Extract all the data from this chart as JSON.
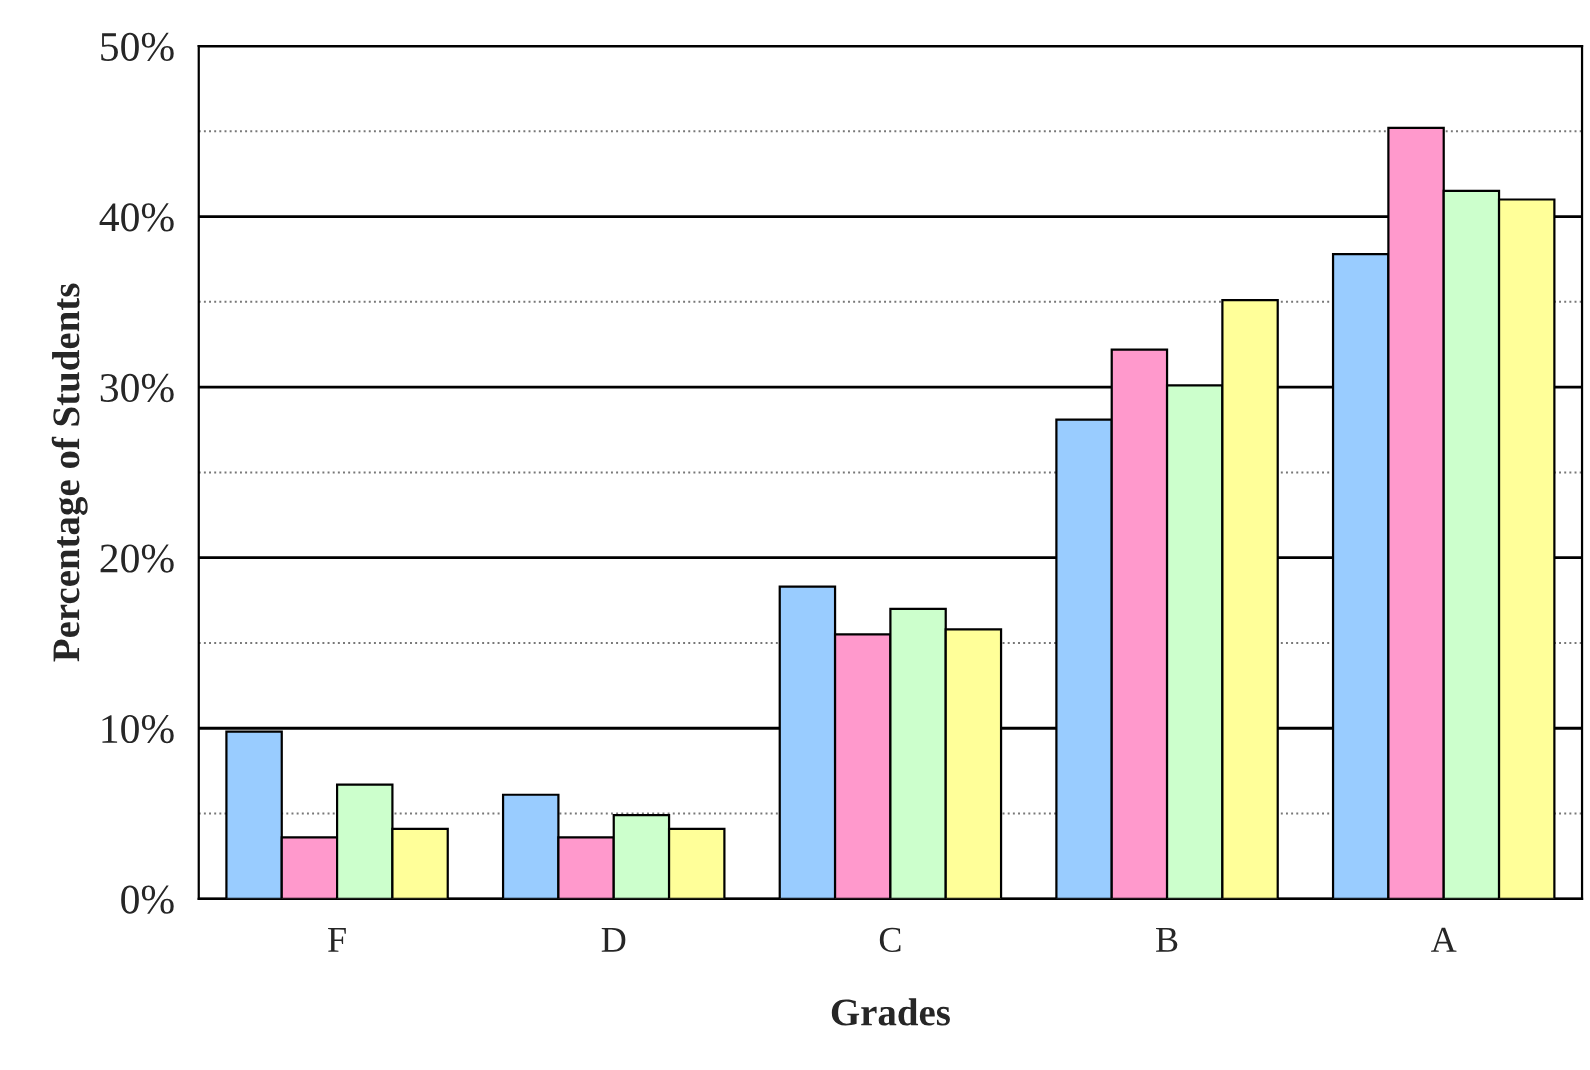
{
  "chart_data": {
    "type": "bar",
    "xlabel": "Grades",
    "ylabel": "Percentage of Students",
    "categories": [
      "F",
      "D",
      "C",
      "B",
      "A"
    ],
    "series": [
      {
        "color": "#99ccff",
        "values": [
          9.8,
          6.1,
          18.3,
          28.1,
          37.8
        ]
      },
      {
        "color": "#ff99cc",
        "values": [
          3.6,
          3.6,
          15.5,
          32.2,
          45.2
        ]
      },
      {
        "color": "#ccffcc",
        "values": [
          6.7,
          4.9,
          17.0,
          30.1,
          41.5
        ]
      },
      {
        "color": "#ffff99",
        "values": [
          4.1,
          4.1,
          15.8,
          35.1,
          41.0
        ]
      }
    ],
    "ylim": [
      0,
      50
    ],
    "yticks": [
      {
        "value": 0,
        "label": "0%"
      },
      {
        "value": 5,
        "label": null
      },
      {
        "value": 10,
        "label": "10%"
      },
      {
        "value": 15,
        "label": null
      },
      {
        "value": 20,
        "label": "20%"
      },
      {
        "value": 25,
        "label": null
      },
      {
        "value": 30,
        "label": "30%"
      },
      {
        "value": 35,
        "label": null
      },
      {
        "value": 40,
        "label": "40%"
      },
      {
        "value": 45,
        "label": null
      },
      {
        "value": 50,
        "label": "50%"
      }
    ],
    "grid": "y",
    "legend": false
  }
}
